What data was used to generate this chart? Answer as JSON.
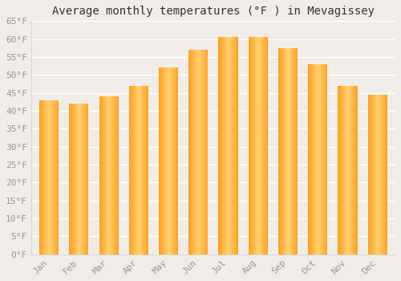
{
  "title": "Average monthly temperatures (°F ) in Mevagissey",
  "months": [
    "Jan",
    "Feb",
    "Mar",
    "Apr",
    "May",
    "Jun",
    "Jul",
    "Aug",
    "Sep",
    "Oct",
    "Nov",
    "Dec"
  ],
  "values": [
    43,
    42,
    44,
    47,
    52,
    57,
    60.5,
    60.5,
    57.5,
    53,
    47,
    44.5
  ],
  "bar_color_light": "#FFD060",
  "bar_color_mid": "#FFA500",
  "bar_color_dark": "#E08000",
  "ylim": [
    0,
    65
  ],
  "yticks": [
    0,
    5,
    10,
    15,
    20,
    25,
    30,
    35,
    40,
    45,
    50,
    55,
    60,
    65
  ],
  "background_color": "#f0ede8",
  "grid_color": "#ffffff",
  "title_fontsize": 10,
  "tick_fontsize": 8,
  "font_family": "monospace",
  "tick_color": "#999999",
  "bar_width": 0.65
}
